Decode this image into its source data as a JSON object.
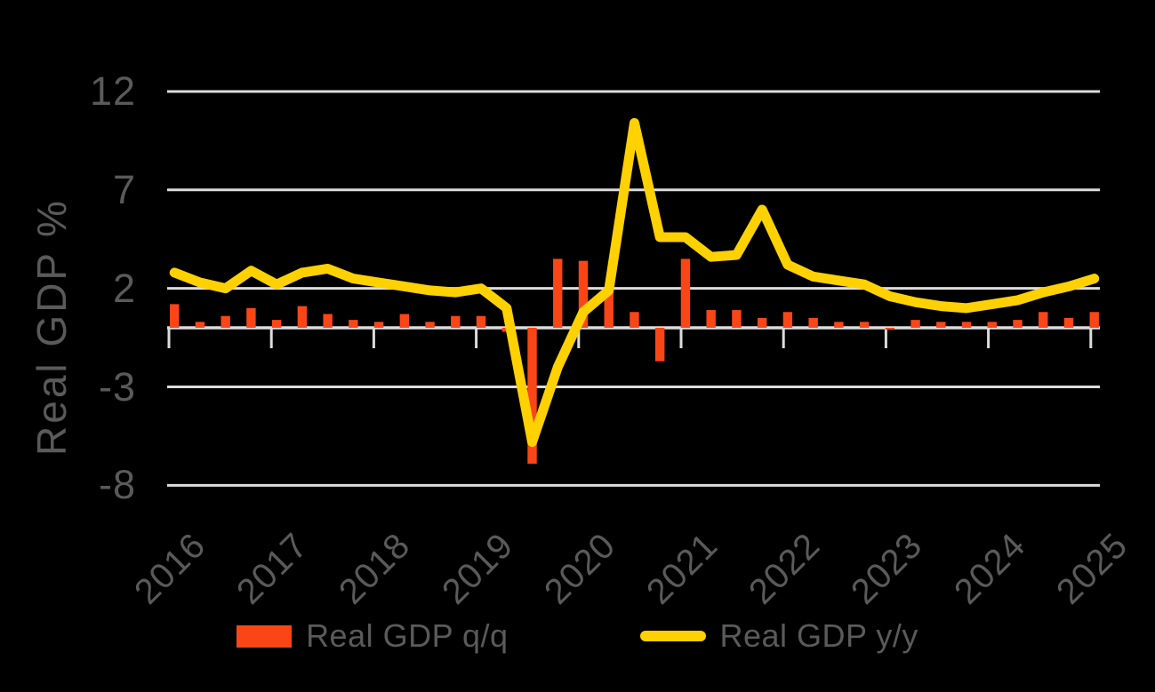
{
  "chart_data": {
    "type": "combo-bar-line",
    "title": "",
    "ylabel": "Real GDP %",
    "y_ticks": [
      12,
      7,
      2,
      -3,
      -8
    ],
    "ylim": [
      -9.5,
      13
    ],
    "x_tick_labels": [
      "2016",
      "2017",
      "2018",
      "2019",
      "2020",
      "2021",
      "2022",
      "2023",
      "2024",
      "2025"
    ],
    "grid": "horizontal",
    "legend_position": "bottom-center",
    "background": "dark",
    "categories": [
      "2016 Q1",
      "2016 Q2",
      "2016 Q3",
      "2016 Q4",
      "2017 Q1",
      "2017 Q2",
      "2017 Q3",
      "2017 Q4",
      "2018 Q1",
      "2018 Q2",
      "2018 Q3",
      "2018 Q4",
      "2019 Q1",
      "2019 Q2",
      "2019 Q3",
      "2019 Q4",
      "2020 Q1",
      "2020 Q2",
      "2020 Q3",
      "2020 Q4",
      "2021 Q1",
      "2021 Q2",
      "2021 Q3",
      "2021 Q4",
      "2022 Q1",
      "2022 Q2",
      "2022 Q3",
      "2022 Q4",
      "2023 Q1",
      "2023 Q2",
      "2023 Q3",
      "2023 Q4",
      "2024 Q1",
      "2024 Q2",
      "2024 Q3",
      "2024 Q4",
      "2025 Q1"
    ],
    "series": [
      {
        "name": "Real GDP q/q",
        "type": "bar",
        "color": "#FA4616",
        "values": [
          1.2,
          0.3,
          0.6,
          1.0,
          0.4,
          1.1,
          0.7,
          0.4,
          0.3,
          0.7,
          0.3,
          0.6,
          0.6,
          -0.2,
          -6.9,
          3.5,
          3.4,
          1.8,
          0.8,
          -1.7,
          3.5,
          0.9,
          0.9,
          0.5,
          0.8,
          0.5,
          0.3,
          0.3,
          -0.1,
          0.4,
          0.3,
          0.3,
          0.3,
          0.4,
          0.8,
          0.5,
          0.8
        ]
      },
      {
        "name": "Real GDP y/y",
        "type": "line",
        "color": "#FFD100",
        "values": [
          2.8,
          2.3,
          2.0,
          2.9,
          2.2,
          2.8,
          3.0,
          2.5,
          2.3,
          2.1,
          1.9,
          1.8,
          2.0,
          1.0,
          -5.8,
          -2.0,
          0.8,
          1.9,
          10.4,
          4.6,
          4.6,
          3.6,
          3.7,
          6.0,
          3.2,
          2.6,
          2.4,
          2.2,
          1.6,
          1.3,
          1.1,
          1.0,
          1.2,
          1.4,
          1.8,
          2.1,
          2.5
        ]
      }
    ]
  },
  "colors": {
    "background": "#000000",
    "grid": "#DCDCDC",
    "text": "#5A5A5A",
    "bar": "#FA4616",
    "line": "#FFD100"
  }
}
